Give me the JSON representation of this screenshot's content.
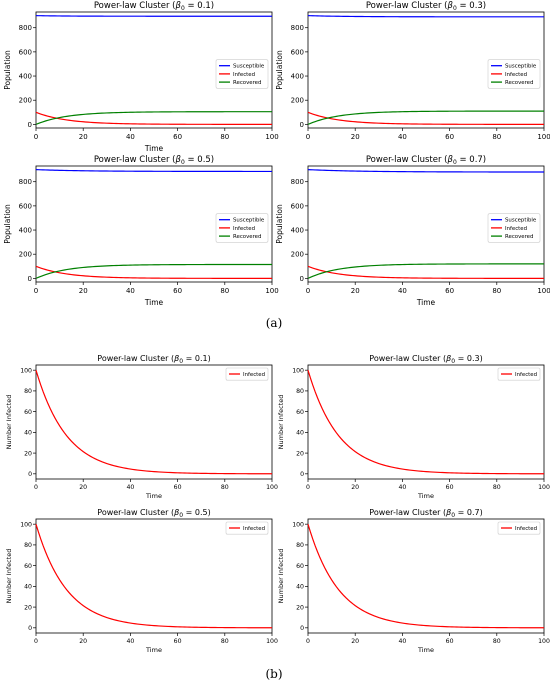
{
  "captions": {
    "a": "(a)",
    "b": "(b)"
  },
  "chart_data": [
    {
      "panel": "a",
      "type": "line",
      "title": "Power-law Cluster (",
      "beta_text": "0.1",
      "xlabel": "Time",
      "ylabel": "Population",
      "xlim": [
        0,
        100
      ],
      "ylim": [
        -30,
        930
      ],
      "xticks": [
        0,
        20,
        40,
        60,
        80,
        100
      ],
      "yticks": [
        0,
        200,
        400,
        600,
        800
      ],
      "legend": "right-center",
      "series": [
        {
          "name": "Susceptible",
          "color": "#0000ff",
          "model": "S",
          "start": 900,
          "end": 895,
          "k": 0.08
        },
        {
          "name": "Infected",
          "color": "#ff0000",
          "model": "I",
          "start": 100,
          "k": 0.077
        },
        {
          "name": "Recovered",
          "color": "#008000",
          "model": "R",
          "end": 105,
          "k": 0.077
        }
      ]
    },
    {
      "panel": "a",
      "type": "line",
      "title": "Power-law Cluster (",
      "beta_text": "0.3",
      "xlabel": "",
      "ylabel": "Population",
      "xlim": [
        0,
        100
      ],
      "ylim": [
        -30,
        930
      ],
      "xticks": [
        0,
        20,
        40,
        60,
        80,
        100
      ],
      "yticks": [
        0,
        200,
        400,
        600,
        800
      ],
      "legend": "right-center",
      "series": [
        {
          "name": "Susceptible",
          "color": "#0000ff",
          "model": "S",
          "start": 900,
          "end": 890,
          "k": 0.06
        },
        {
          "name": "Infected",
          "color": "#ff0000",
          "model": "I",
          "start": 100,
          "k": 0.077
        },
        {
          "name": "Recovered",
          "color": "#008000",
          "model": "R",
          "end": 110,
          "k": 0.077
        }
      ]
    },
    {
      "panel": "a",
      "type": "line",
      "title": "Power-law Cluster (",
      "beta_text": "0.5",
      "xlabel": "Time",
      "ylabel": "Population",
      "xlim": [
        0,
        100
      ],
      "ylim": [
        -30,
        930
      ],
      "xticks": [
        0,
        20,
        40,
        60,
        80,
        100
      ],
      "yticks": [
        0,
        200,
        400,
        600,
        800
      ],
      "legend": "right-center",
      "series": [
        {
          "name": "Susceptible",
          "color": "#0000ff",
          "model": "S",
          "start": 900,
          "end": 885,
          "k": 0.05
        },
        {
          "name": "Infected",
          "color": "#ff0000",
          "model": "I",
          "start": 100,
          "k": 0.077
        },
        {
          "name": "Recovered",
          "color": "#008000",
          "model": "R",
          "end": 115,
          "k": 0.077
        }
      ]
    },
    {
      "panel": "a",
      "type": "line",
      "title": "Power-law Cluster (",
      "beta_text": "0.7",
      "xlabel": "Time",
      "ylabel": "Population",
      "xlim": [
        0,
        100
      ],
      "ylim": [
        -30,
        930
      ],
      "xticks": [
        0,
        20,
        40,
        60,
        80,
        100
      ],
      "yticks": [
        0,
        200,
        400,
        600,
        800
      ],
      "legend": "right-center",
      "series": [
        {
          "name": "Susceptible",
          "color": "#0000ff",
          "model": "S",
          "start": 900,
          "end": 880,
          "k": 0.045
        },
        {
          "name": "Infected",
          "color": "#ff0000",
          "model": "I",
          "start": 100,
          "k": 0.077
        },
        {
          "name": "Recovered",
          "color": "#008000",
          "model": "R",
          "end": 120,
          "k": 0.077
        }
      ]
    },
    {
      "panel": "b",
      "type": "line",
      "title": "Power-law Cluster (",
      "beta_text": "0.1",
      "xlabel": "Time",
      "ylabel": "Number Infected",
      "xlim": [
        0,
        100
      ],
      "ylim": [
        -5,
        105
      ],
      "xticks": [
        0,
        20,
        40,
        60,
        80,
        100
      ],
      "yticks": [
        0,
        20,
        40,
        60,
        80,
        100
      ],
      "legend": "top-right",
      "series": [
        {
          "name": "Infected",
          "color": "#ff0000",
          "model": "I",
          "start": 100,
          "k": 0.077
        }
      ]
    },
    {
      "panel": "b",
      "type": "line",
      "title": "Power-law Cluster (",
      "beta_text": "0.3",
      "xlabel": "Time",
      "ylabel": "Number Infected",
      "xlim": [
        0,
        100
      ],
      "ylim": [
        -5,
        105
      ],
      "xticks": [
        0,
        20,
        40,
        60,
        80,
        100
      ],
      "yticks": [
        0,
        20,
        40,
        60,
        80,
        100
      ],
      "legend": "top-right",
      "series": [
        {
          "name": "Infected",
          "color": "#ff0000",
          "model": "I",
          "start": 100,
          "k": 0.077
        }
      ]
    },
    {
      "panel": "b",
      "type": "line",
      "title": "Power-law Cluster (",
      "beta_text": "0.5",
      "xlabel": "Time",
      "ylabel": "Number Infected",
      "xlim": [
        0,
        100
      ],
      "ylim": [
        -5,
        105
      ],
      "xticks": [
        0,
        20,
        40,
        60,
        80,
        100
      ],
      "yticks": [
        0,
        20,
        40,
        60,
        80,
        100
      ],
      "legend": "top-right",
      "series": [
        {
          "name": "Infected",
          "color": "#ff0000",
          "model": "I",
          "start": 100,
          "k": 0.077
        }
      ]
    },
    {
      "panel": "b",
      "type": "line",
      "title": "Power-law Cluster (",
      "beta_text": "0.7",
      "xlabel": "Time",
      "ylabel": "Number Infected",
      "xlim": [
        0,
        100
      ],
      "ylim": [
        -5,
        105
      ],
      "xticks": [
        0,
        20,
        40,
        60,
        80,
        100
      ],
      "yticks": [
        0,
        20,
        40,
        60,
        80,
        100
      ],
      "legend": "top-right",
      "series": [
        {
          "name": "Infected",
          "color": "#ff0000",
          "model": "I",
          "start": 100,
          "k": 0.077
        }
      ]
    }
  ]
}
